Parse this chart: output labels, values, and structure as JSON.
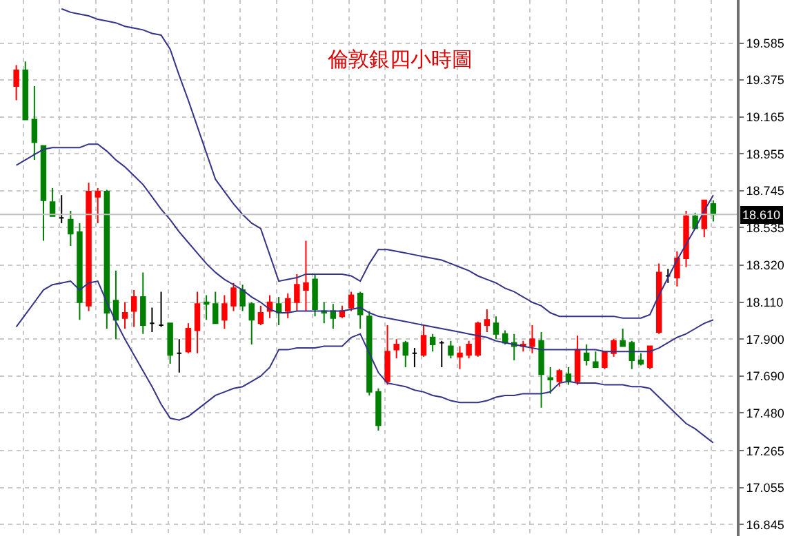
{
  "chart_data": {
    "type": "candlestick",
    "title": "倫敦銀四小時圖",
    "categories": [
      null,
      null,
      null,
      null,
      null,
      null,
      null,
      null,
      null,
      null,
      null,
      null,
      null,
      null,
      null,
      null,
      null,
      null,
      null,
      null,
      null,
      null,
      null,
      null,
      null,
      null,
      null,
      null,
      null,
      null,
      null,
      null,
      null,
      null,
      null,
      null,
      null,
      null,
      null,
      null,
      null,
      null,
      null,
      null,
      null,
      null,
      null,
      null,
      null,
      null,
      null,
      null,
      null,
      null,
      null,
      null,
      null,
      null,
      null,
      null,
      null,
      null,
      null,
      null,
      null,
      null,
      null,
      null,
      null,
      null,
      null,
      null,
      null,
      null,
      null,
      null,
      null,
      null
    ],
    "ohlc": [
      [
        19.34,
        19.46,
        19.26,
        19.43
      ],
      [
        19.43,
        19.48,
        19.15,
        19.15
      ],
      [
        19.15,
        19.34,
        18.92,
        19.02
      ],
      [
        19.0,
        19.0,
        18.46,
        18.69
      ],
      [
        18.68,
        18.76,
        18.6,
        18.6
      ],
      [
        18.59,
        18.72,
        18.56,
        18.59
      ],
      [
        18.58,
        18.63,
        18.43,
        18.5
      ],
      [
        18.51,
        18.56,
        18.01,
        18.11
      ],
      [
        18.09,
        18.79,
        18.06,
        18.74
      ],
      [
        18.71,
        18.76,
        18.56,
        18.74
      ],
      [
        18.74,
        18.75,
        17.96,
        18.05
      ],
      [
        18.12,
        18.29,
        17.9,
        18.01
      ],
      [
        18.02,
        18.11,
        17.96,
        18.05
      ],
      [
        18.06,
        18.18,
        17.97,
        18.14
      ],
      [
        18.14,
        18.28,
        17.93,
        17.98
      ],
      [
        17.99,
        18.08,
        17.94,
        17.99
      ],
      [
        17.98,
        18.17,
        17.97,
        17.98
      ],
      [
        17.99,
        17.99,
        17.76,
        17.81
      ],
      [
        17.82,
        17.9,
        17.71,
        17.82
      ],
      [
        17.83,
        17.99,
        17.82,
        17.96
      ],
      [
        17.95,
        18.17,
        17.82,
        18.1
      ],
      [
        18.11,
        18.15,
        18.01,
        18.1
      ],
      [
        18.1,
        18.17,
        17.99,
        17.99
      ],
      [
        18.01,
        18.15,
        17.96,
        18.1
      ],
      [
        18.09,
        18.22,
        18.06,
        18.19
      ],
      [
        18.18,
        18.21,
        18.06,
        18.09
      ],
      [
        18.1,
        18.11,
        17.87,
        18.01
      ],
      [
        17.99,
        18.09,
        17.98,
        18.05
      ],
      [
        18.06,
        18.15,
        18.02,
        18.11
      ],
      [
        18.1,
        18.14,
        17.98,
        18.05
      ],
      [
        18.06,
        18.16,
        18.02,
        18.13
      ],
      [
        18.11,
        18.27,
        18.06,
        18.21
      ],
      [
        18.18,
        18.46,
        18.06,
        18.22
      ],
      [
        18.24,
        18.27,
        18.03,
        18.07
      ],
      [
        18.06,
        18.11,
        17.99,
        18.05
      ],
      [
        18.06,
        18.1,
        17.96,
        18.02
      ],
      [
        18.03,
        18.09,
        18.02,
        18.06
      ],
      [
        18.08,
        18.17,
        18.06,
        18.15
      ],
      [
        18.16,
        18.17,
        17.96,
        18.04
      ],
      [
        18.03,
        18.06,
        17.58,
        17.6
      ],
      [
        17.6,
        17.62,
        17.38,
        17.41
      ],
      [
        17.66,
        17.98,
        17.64,
        17.83
      ],
      [
        17.84,
        17.9,
        17.79,
        17.87
      ],
      [
        17.88,
        17.89,
        17.74,
        17.81
      ],
      [
        17.82,
        17.85,
        17.74,
        17.82
      ],
      [
        17.81,
        17.98,
        17.8,
        17.92
      ],
      [
        17.91,
        17.93,
        17.83,
        17.87
      ],
      [
        17.88,
        17.89,
        17.74,
        17.88
      ],
      [
        17.86,
        17.89,
        17.79,
        17.81
      ],
      [
        17.8,
        17.86,
        17.73,
        17.82
      ],
      [
        17.81,
        17.89,
        17.79,
        17.87
      ],
      [
        17.81,
        18.0,
        17.8,
        17.99
      ],
      [
        17.98,
        18.07,
        17.94,
        18.01
      ],
      [
        17.99,
        18.03,
        17.9,
        17.93
      ],
      [
        17.93,
        17.95,
        17.87,
        17.88
      ],
      [
        17.88,
        17.93,
        17.78,
        17.86
      ],
      [
        17.86,
        17.89,
        17.83,
        17.87
      ],
      [
        17.86,
        17.98,
        17.82,
        17.9
      ],
      [
        17.89,
        17.94,
        17.51,
        17.7
      ],
      [
        17.68,
        17.74,
        17.59,
        17.67
      ],
      [
        17.66,
        17.73,
        17.63,
        17.72
      ],
      [
        17.7,
        17.74,
        17.64,
        17.66
      ],
      [
        17.66,
        17.92,
        17.64,
        17.84
      ],
      [
        17.82,
        17.87,
        17.75,
        17.78
      ],
      [
        17.77,
        17.83,
        17.74,
        17.74
      ],
      [
        17.74,
        17.83,
        17.73,
        17.83
      ],
      [
        17.82,
        17.9,
        17.8,
        17.89
      ],
      [
        17.89,
        17.96,
        17.86,
        17.86
      ],
      [
        17.88,
        17.89,
        17.73,
        17.78
      ],
      [
        17.78,
        17.82,
        17.75,
        17.76
      ],
      [
        17.74,
        17.86,
        17.73,
        17.86
      ],
      [
        17.94,
        18.33,
        17.93,
        18.28
      ],
      [
        18.26,
        18.3,
        18.22,
        18.26
      ],
      [
        18.25,
        18.4,
        18.2,
        18.36
      ],
      [
        18.36,
        18.63,
        18.31,
        18.6
      ],
      [
        18.6,
        18.62,
        18.53,
        18.53
      ],
      [
        18.53,
        18.69,
        18.48,
        18.69
      ],
      [
        18.67,
        18.69,
        18.57,
        18.61
      ]
    ],
    "colors": [
      "#ff0000",
      "#008000",
      "#008000",
      "#008000",
      "#008000",
      "#000000",
      "#008000",
      "#008000",
      "#ff0000",
      "#ff0000",
      "#008000",
      "#008000",
      "#ff0000",
      "#ff0000",
      "#008000",
      "#000000",
      "#000000",
      "#008000",
      "#000000",
      "#ff0000",
      "#ff0000",
      "#008000",
      "#008000",
      "#ff0000",
      "#ff0000",
      "#008000",
      "#008000",
      "#ff0000",
      "#ff0000",
      "#008000",
      "#ff0000",
      "#ff0000",
      "#ff0000",
      "#008000",
      "#008000",
      "#008000",
      "#ff0000",
      "#ff0000",
      "#008000",
      "#008000",
      "#008000",
      "#ff0000",
      "#ff0000",
      "#008000",
      "#000000",
      "#ff0000",
      "#008000",
      "#000000",
      "#008000",
      "#ff0000",
      "#ff0000",
      "#ff0000",
      "#ff0000",
      "#008000",
      "#008000",
      "#008000",
      "#ff0000",
      "#ff0000",
      "#008000",
      "#008000",
      "#ff0000",
      "#008000",
      "#ff0000",
      "#008000",
      "#008000",
      "#ff0000",
      "#ff0000",
      "#008000",
      "#008000",
      "#008000",
      "#ff0000",
      "#ff0000",
      "#000000",
      "#ff0000",
      "#ff0000",
      "#008000",
      "#ff0000",
      "#008000"
    ],
    "series": [
      {
        "type": "line",
        "color": "#33338a",
        "values": [
          null,
          null,
          null,
          null,
          null,
          19.78,
          19.76,
          19.75,
          19.74,
          19.72,
          19.71,
          19.7,
          19.68,
          19.67,
          19.66,
          19.64,
          19.63,
          19.55,
          19.4,
          19.26,
          19.11,
          18.96,
          18.81,
          18.74,
          18.67,
          18.61,
          18.56,
          18.53,
          18.38,
          18.23,
          18.24,
          18.25,
          18.27,
          18.27,
          18.27,
          18.27,
          18.27,
          18.26,
          18.23,
          18.33,
          18.41,
          18.41,
          18.4,
          18.39,
          18.38,
          18.37,
          18.36,
          18.35,
          18.33,
          18.31,
          18.29,
          18.26,
          18.24,
          18.22,
          18.19,
          18.17,
          18.14,
          18.11,
          18.09,
          18.05,
          18.03,
          18.03,
          18.03,
          18.03,
          18.03,
          18.03,
          18.03,
          18.02,
          18.02,
          18.02,
          18.04,
          18.15,
          18.25,
          18.35,
          18.44,
          18.53,
          18.63,
          18.72
        ]
      },
      {
        "type": "line",
        "color": "#33338a",
        "values": [
          18.89,
          18.92,
          18.95,
          18.98,
          18.99,
          18.99,
          18.99,
          18.99,
          19.01,
          19.01,
          18.97,
          18.92,
          18.88,
          18.83,
          18.78,
          18.71,
          18.64,
          18.58,
          18.51,
          18.45,
          18.39,
          18.33,
          18.28,
          18.24,
          18.21,
          18.18,
          18.14,
          18.11,
          18.07,
          18.05,
          18.05,
          18.06,
          18.06,
          18.06,
          18.06,
          18.06,
          18.06,
          18.07,
          18.08,
          18.05,
          18.03,
          18.02,
          18.01,
          18.0,
          17.99,
          17.98,
          17.97,
          17.96,
          17.95,
          17.94,
          17.93,
          17.92,
          17.91,
          17.89,
          17.88,
          17.87,
          17.86,
          17.85,
          17.84,
          17.84,
          17.84,
          17.84,
          17.84,
          17.84,
          17.84,
          17.83,
          17.83,
          17.83,
          17.83,
          17.83,
          17.83,
          17.85,
          17.88,
          17.91,
          17.93,
          17.96,
          17.99,
          18.01
        ]
      },
      {
        "type": "line",
        "color": "#33338a",
        "values": [
          17.97,
          18.04,
          18.11,
          18.18,
          18.21,
          18.22,
          18.23,
          18.18,
          18.22,
          18.23,
          18.11,
          18.0,
          17.9,
          17.81,
          17.72,
          17.63,
          17.53,
          17.45,
          17.44,
          17.46,
          17.5,
          17.54,
          17.58,
          17.6,
          17.62,
          17.63,
          17.66,
          17.69,
          17.74,
          17.84,
          17.84,
          17.85,
          17.85,
          17.85,
          17.86,
          17.86,
          17.86,
          17.91,
          17.93,
          17.82,
          17.71,
          17.65,
          17.64,
          17.63,
          17.61,
          17.6,
          17.58,
          17.57,
          17.55,
          17.54,
          17.54,
          17.54,
          17.55,
          17.57,
          17.58,
          17.58,
          17.59,
          17.59,
          17.59,
          17.6,
          17.65,
          17.66,
          17.65,
          17.65,
          17.65,
          17.64,
          17.64,
          17.64,
          17.63,
          17.63,
          17.62,
          17.57,
          17.52,
          17.47,
          17.42,
          17.39,
          17.35,
          17.31
        ]
      }
    ],
    "ylim": [
      16.78,
      19.83
    ],
    "yticks": [
      19.585,
      19.375,
      19.165,
      18.955,
      18.745,
      18.535,
      {
        "value": 18.32,
        "label": "18.320"
      },
      {
        "value": 18.11,
        "label": "18.110"
      },
      {
        "value": 17.9,
        "label": "17.900"
      },
      {
        "value": 17.69,
        "label": "17.690"
      },
      {
        "value": 17.48,
        "label": "17.480"
      },
      17.265,
      17.055,
      16.845
    ],
    "ref_lines": [
      {
        "axis": "y",
        "value": 18.61,
        "label": "18.610",
        "color": "#c0c0c0"
      }
    ],
    "grid": true,
    "tick_labels": "y"
  }
}
